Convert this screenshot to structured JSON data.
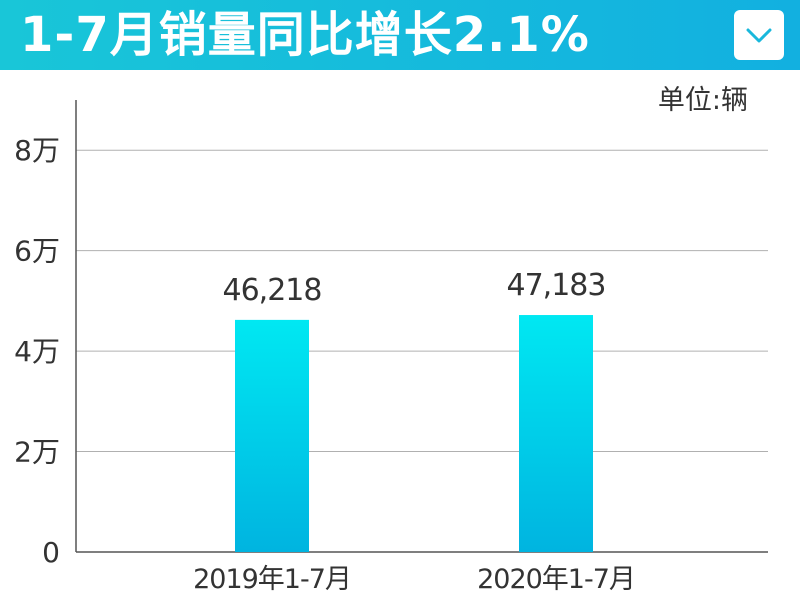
{
  "header": {
    "title": "1-7月销量同比增长2.1%",
    "dropdown_icon": "chevron-down-icon"
  },
  "colors": {
    "header_start": "#19c6d8",
    "header_end": "#12b0e0",
    "bar_top": "#00e8f2",
    "bar_bottom": "#00b4e0"
  },
  "unit_label": "单位:辆",
  "chart_data": {
    "type": "bar",
    "title": "1-7月销量同比增长2.1%",
    "xlabel": "",
    "ylabel": "",
    "categories": [
      "2019年1-7月",
      "2020年1-7月"
    ],
    "values": [
      46218,
      47183
    ],
    "data_labels": [
      "46,218",
      "47,183"
    ],
    "ylim": [
      0,
      90000
    ],
    "yticks": [
      0,
      20000,
      40000,
      60000,
      80000
    ],
    "ytick_labels": [
      "0",
      "2万",
      "4万",
      "6万",
      "8万"
    ],
    "grid": true,
    "legend": "none"
  }
}
